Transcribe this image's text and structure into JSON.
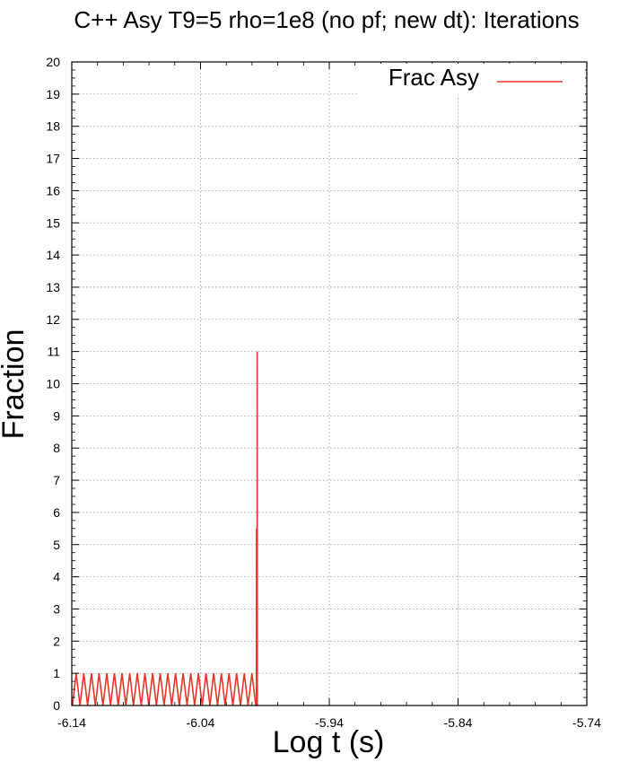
{
  "chart_data": {
    "type": "line",
    "title": "C++ Asy T9=5 rho=1e8 (no pf; new dt): Iterations",
    "xlabel": "Log t (s)",
    "ylabel": "Fraction",
    "xlim": [
      -6.14,
      -5.74
    ],
    "ylim": [
      0,
      20
    ],
    "x_ticks": [
      "-6.14",
      "-6.04",
      "-5.94",
      "-5.84",
      "-5.74"
    ],
    "y_ticks": [
      "0",
      "1",
      "2",
      "3",
      "4",
      "5",
      "6",
      "7",
      "8",
      "9",
      "10",
      "11",
      "12",
      "13",
      "14",
      "15",
      "16",
      "17",
      "18",
      "19",
      "20"
    ],
    "grid": true,
    "legend_position": "top-right",
    "series": [
      {
        "name": "Frac Asy",
        "color": "#e8352b",
        "x": [
          -6.1395,
          -6.1366,
          -6.1336,
          -6.1307,
          -6.1277,
          -6.1247,
          -6.1217,
          -6.1188,
          -6.1158,
          -6.1128,
          -6.1099,
          -6.1069,
          -6.1039,
          -6.101,
          -6.098,
          -6.095,
          -6.0921,
          -6.0891,
          -6.0861,
          -6.0832,
          -6.0802,
          -6.0772,
          -6.0743,
          -6.0713,
          -6.0683,
          -6.0654,
          -6.0624,
          -6.0594,
          -6.0565,
          -6.0535,
          -6.0505,
          -6.0476,
          -6.0446,
          -6.0416,
          -6.0387,
          -6.0357,
          -6.0327,
          -6.0298,
          -6.0268,
          -6.0238,
          -6.0209,
          -6.0179,
          -6.0149,
          -6.012,
          -6.009,
          -6.006,
          -6.0031,
          -6.0001,
          -5.9971,
          -5.9966,
          -5.9965,
          -5.9964,
          -5.9961,
          -5.996,
          -5.9959,
          -5.9957
        ],
        "y": [
          0,
          1,
          0,
          1,
          0,
          1,
          0,
          1,
          0,
          1,
          0,
          1,
          0,
          1,
          0,
          1,
          0,
          1,
          0,
          1,
          0,
          1,
          0,
          1,
          0,
          1,
          0,
          1,
          0,
          1,
          0,
          1,
          0,
          1,
          0,
          1,
          0,
          1,
          0,
          1,
          0,
          1,
          0,
          1,
          0,
          1,
          0,
          1,
          0,
          0,
          5.5,
          0,
          0,
          11,
          0,
          0
        ]
      }
    ]
  }
}
